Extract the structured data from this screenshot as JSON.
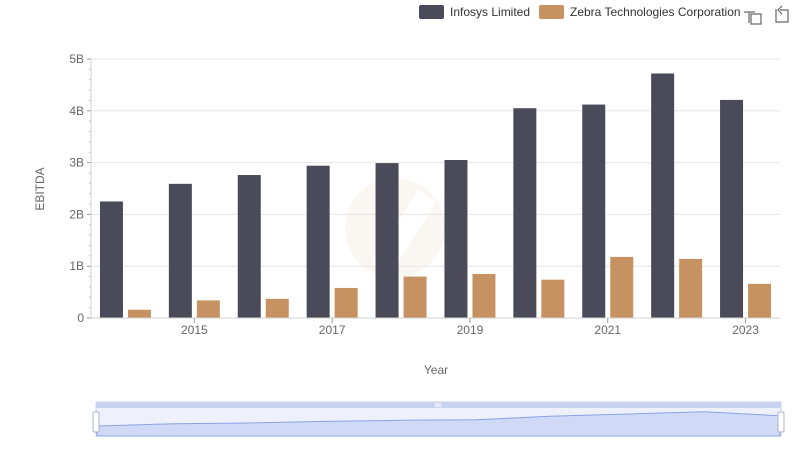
{
  "chart_data": {
    "type": "bar",
    "title": "",
    "xlabel": "Year",
    "ylabel": "EBITDA",
    "categories": [
      "2014",
      "2015",
      "2016",
      "2017",
      "2018",
      "2019",
      "2020",
      "2021",
      "2022",
      "2023"
    ],
    "x_tick_labels": [
      "2015",
      "2017",
      "2019",
      "2021",
      "2023"
    ],
    "y_tick_labels": [
      "0",
      "1B",
      "2B",
      "3B",
      "4B",
      "5B"
    ],
    "ylim": [
      0,
      5000000000
    ],
    "grid": true,
    "legend_position": "top-right",
    "series": [
      {
        "name": "Infosys Limited",
        "color": "#4a4a58",
        "values": [
          2250000000,
          2590000000,
          2760000000,
          2940000000,
          2990000000,
          3050000000,
          4050000000,
          4120000000,
          4720000000,
          4210000000
        ]
      },
      {
        "name": "Zebra Technologies Corporation",
        "color": "#c79262",
        "values": [
          160000000,
          340000000,
          370000000,
          580000000,
          800000000,
          850000000,
          740000000,
          1180000000,
          1140000000,
          660000000
        ]
      }
    ]
  },
  "toolbar": {
    "zoom_icon": "zoom-select-icon",
    "reset_icon": "zoom-reset-icon"
  },
  "colors": {
    "grid": "#e6e6e6",
    "navigator_fill": "#dce4fa",
    "navigator_line": "#8aa3e6",
    "navigator_border": "#c9d2ef"
  }
}
